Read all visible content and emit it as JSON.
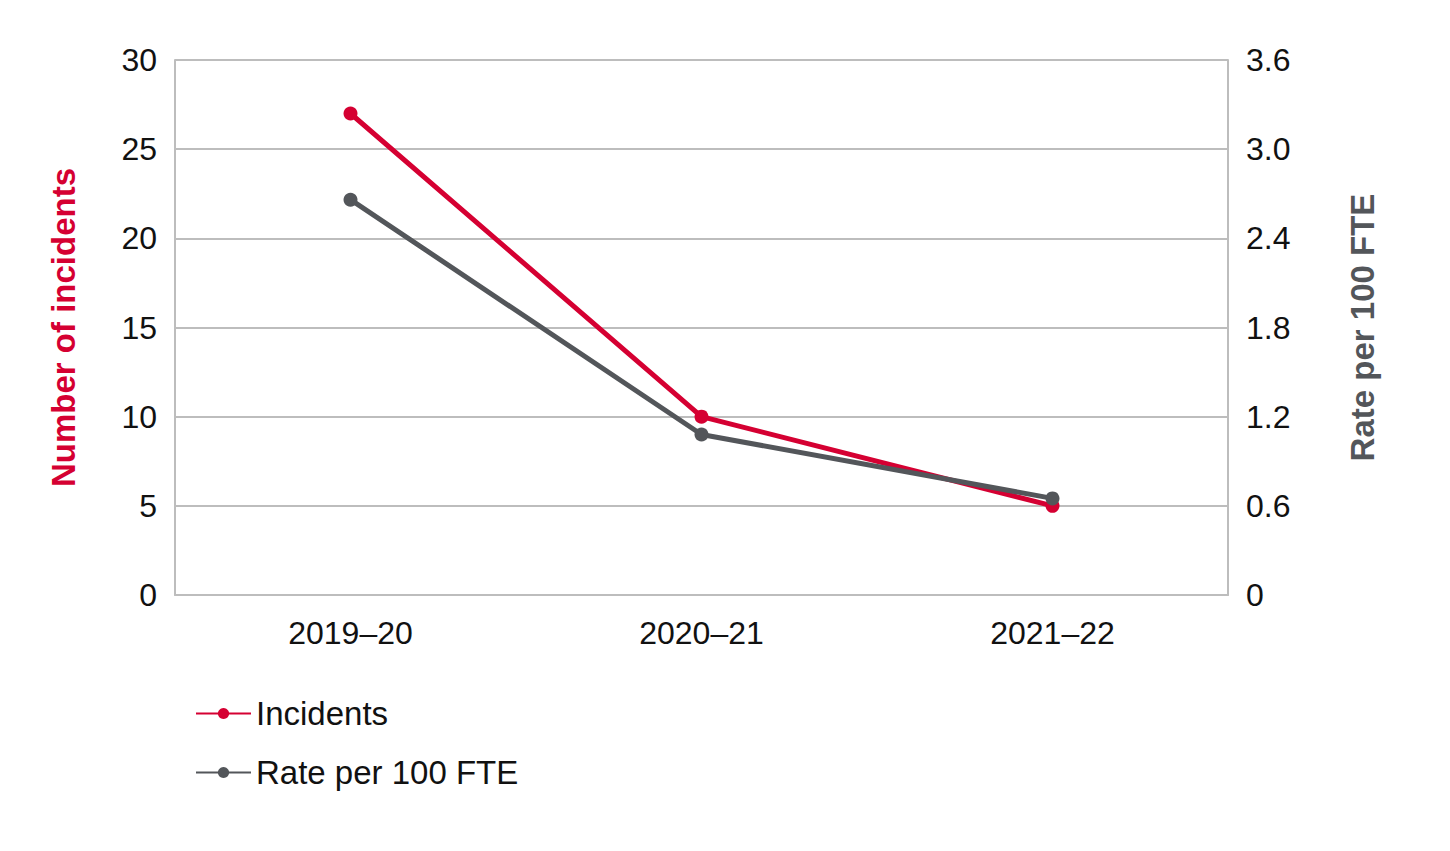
{
  "chart_data": {
    "type": "line",
    "categories": [
      "2019–20",
      "2020–21",
      "2021–22"
    ],
    "series": [
      {
        "name": "Incidents",
        "color": "#d50032",
        "values": [
          27,
          10,
          5
        ]
      },
      {
        "name": "Rate per 100 FTE",
        "color": "#53565a",
        "values": [
          2.66,
          1.08,
          0.65
        ],
        "axis": "y2"
      }
    ],
    "y_label": "Number of incidents",
    "y2_label": "Rate per 100 FTE",
    "ylim": [
      0,
      30
    ],
    "yticks": [
      0,
      5,
      10,
      15,
      20,
      25,
      30
    ],
    "y2lim": [
      0,
      3.6
    ],
    "y2ticks": [
      0,
      0.6,
      1.2,
      1.8,
      2.4,
      {
        "value": 3,
        "label": "3.0"
      },
      3.6
    ],
    "marker": "circle",
    "grid": true,
    "legend": "bottom-left"
  }
}
